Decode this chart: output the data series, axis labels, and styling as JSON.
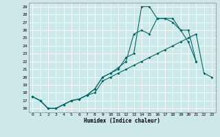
{
  "title": "",
  "xlabel": "Humidex (Indice chaleur)",
  "bg_color": "#cce8e8",
  "grid_color": "#ffffff",
  "line_color": "#006666",
  "xlim": [
    -0.5,
    23.5
  ],
  "ylim": [
    15.5,
    29.5
  ],
  "xticks": [
    0,
    1,
    2,
    3,
    4,
    5,
    6,
    7,
    8,
    9,
    10,
    11,
    12,
    13,
    14,
    15,
    16,
    17,
    18,
    19,
    20,
    21,
    22,
    23
  ],
  "yticks": [
    16,
    17,
    18,
    19,
    20,
    21,
    22,
    23,
    24,
    25,
    26,
    27,
    28,
    29
  ],
  "line1_x": [
    0,
    1,
    2,
    3,
    4,
    5,
    6,
    7,
    8,
    9,
    10,
    11,
    12,
    13,
    14,
    15,
    16,
    17,
    18,
    19,
    20,
    21
  ],
  "line1_y": [
    17.5,
    17.0,
    16.0,
    16.0,
    16.5,
    17.0,
    17.2,
    17.7,
    18.5,
    20.0,
    20.5,
    21.0,
    22.5,
    23.0,
    29.0,
    29.0,
    27.5,
    27.5,
    27.5,
    26.0,
    24.5,
    22.0
  ],
  "line2_x": [
    0,
    1,
    2,
    3,
    4,
    5,
    6,
    7,
    8,
    9,
    10,
    11,
    12,
    13,
    14,
    15,
    16,
    17,
    18,
    19,
    20,
    21
  ],
  "line2_y": [
    17.5,
    17.0,
    16.0,
    16.0,
    16.5,
    17.0,
    17.2,
    17.7,
    18.5,
    20.0,
    20.5,
    21.2,
    22.0,
    25.5,
    26.0,
    25.5,
    27.5,
    27.5,
    27.0,
    26.0,
    26.0,
    22.0
  ],
  "line3_x": [
    0,
    1,
    2,
    3,
    4,
    5,
    6,
    7,
    8,
    9,
    10,
    11,
    12,
    13,
    14,
    15,
    16,
    17,
    18,
    19,
    20,
    21,
    22,
    23
  ],
  "line3_y": [
    17.5,
    17.0,
    16.0,
    16.0,
    16.5,
    17.0,
    17.2,
    17.7,
    18.0,
    19.5,
    20.0,
    20.5,
    21.0,
    21.5,
    22.0,
    22.5,
    23.0,
    23.5,
    24.0,
    24.5,
    25.0,
    25.5,
    20.5,
    20.0
  ]
}
